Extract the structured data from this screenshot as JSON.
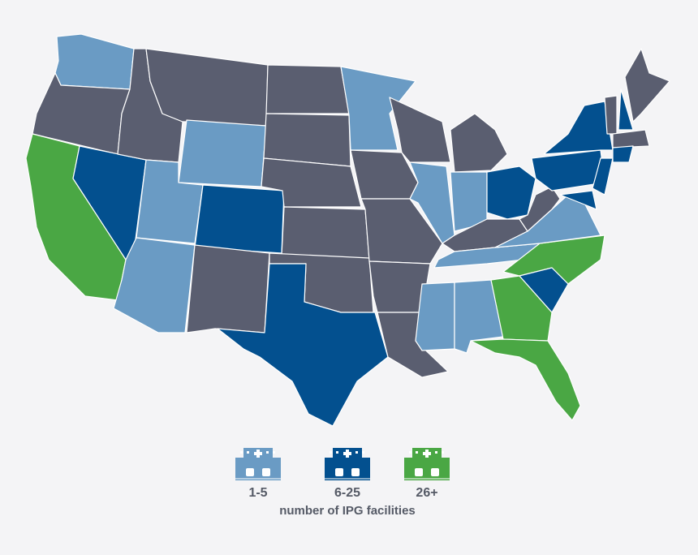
{
  "legend": {
    "items": [
      {
        "label": "1-5",
        "color": "#6a9bc4"
      },
      {
        "label": "6-25",
        "color": "#03508f"
      },
      {
        "label": "26+",
        "color": "#4aa744"
      }
    ],
    "caption": "number of IPG facilities"
  },
  "map": {
    "no_facility_color": "#5a5e70"
  }
}
